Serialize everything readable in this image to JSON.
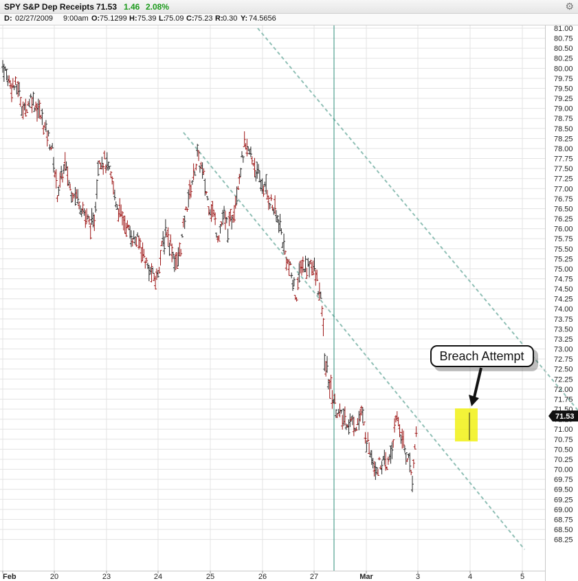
{
  "header": {
    "symbol": "SPY S&P Dep Receipts",
    "last": "71.53",
    "change": "1.46",
    "change_pct": "2.08%",
    "change_color": "#1a9a1a",
    "settings_icon": "gear-icon"
  },
  "quote_line": {
    "period": "D:",
    "date": "02/27/2009",
    "time": "9:00am",
    "open_label": "O:",
    "open": "75.1299",
    "high_label": "H:",
    "high": "75.39",
    "low_label": "L:",
    "low": "75.09",
    "close_label": "C:",
    "close": "75.23",
    "range_label": "R:",
    "range": "0.30",
    "yest_label": "Y:",
    "yest": "74.5656"
  },
  "chart_data": {
    "type": "bar",
    "description_source": "SPY hourly OHLC bars, Feb 2009 to Mar 4 2009",
    "ylim": [
      68.0,
      81.2
    ],
    "grid": true,
    "y_ticks": [
      "81.00",
      "80.75",
      "80.50",
      "80.25",
      "80.00",
      "79.75",
      "79.50",
      "79.25",
      "79.00",
      "78.75",
      "78.50",
      "78.25",
      "78.00",
      "77.75",
      "77.50",
      "77.25",
      "77.00",
      "76.75",
      "76.50",
      "76.25",
      "76.00",
      "75.75",
      "75.50",
      "75.25",
      "75.00",
      "74.75",
      "74.50",
      "74.25",
      "74.00",
      "73.75",
      "73.50",
      "73.25",
      "73.00",
      "72.75",
      "72.50",
      "72.25",
      "72.00",
      "71.75",
      "71.50",
      "71.25",
      "71.00",
      "70.75",
      "70.50",
      "70.25",
      "70.00",
      "69.75",
      "69.50",
      "69.25",
      "69.00",
      "68.75",
      "68.50",
      "68.25"
    ],
    "x_ticks": [
      {
        "label": "Feb",
        "pos": 0,
        "bold": true
      },
      {
        "label": "20",
        "pos": 2,
        "bold": false
      },
      {
        "label": "23",
        "pos": 3,
        "bold": false
      },
      {
        "label": "24",
        "pos": 4,
        "bold": false
      },
      {
        "label": "25",
        "pos": 5,
        "bold": false
      },
      {
        "label": "26",
        "pos": 6,
        "bold": false
      },
      {
        "label": "27",
        "pos": 7,
        "bold": false
      },
      {
        "label": "Mar",
        "pos": 8,
        "bold": true
      },
      {
        "label": "3",
        "pos": 9,
        "bold": false
      },
      {
        "label": "4",
        "pos": 10,
        "bold": false
      },
      {
        "label": "5",
        "pos": 11,
        "bold": false
      }
    ],
    "last_price_tag": "71.53",
    "crosshair_time": "02/27/2009 9:00am",
    "annotation": {
      "text": "Breach Attempt"
    },
    "trend_channel": {
      "upper": [
        {
          "t": 4.91,
          "v": 81.0
        },
        {
          "t": 12.03,
          "v": 70.0
        }
      ],
      "lower": [
        {
          "t": 3.48,
          "v": 78.4
        },
        {
          "t": 10.05,
          "v": 68.0
        }
      ]
    },
    "bar_path": [
      {
        "t": 0.0,
        "v": 80.1
      },
      {
        "t": 0.15,
        "v": 79.6
      },
      {
        "t": 0.3,
        "v": 79.5
      },
      {
        "t": 0.4,
        "v": 78.9
      },
      {
        "t": 0.55,
        "v": 79.3
      },
      {
        "t": 0.7,
        "v": 78.9
      },
      {
        "t": 0.85,
        "v": 78.4
      },
      {
        "t": 0.95,
        "v": 78.0
      },
      {
        "t": 1.05,
        "v": 76.9
      },
      {
        "t": 1.2,
        "v": 77.6
      },
      {
        "t": 1.3,
        "v": 77.0
      },
      {
        "t": 1.45,
        "v": 76.8
      },
      {
        "t": 1.6,
        "v": 76.3
      },
      {
        "t": 1.75,
        "v": 76.0
      },
      {
        "t": 1.85,
        "v": 77.8
      },
      {
        "t": 2.0,
        "v": 77.6
      },
      {
        "t": 2.1,
        "v": 77.2
      },
      {
        "t": 2.2,
        "v": 76.6
      },
      {
        "t": 2.35,
        "v": 76.1
      },
      {
        "t": 2.5,
        "v": 75.8
      },
      {
        "t": 2.65,
        "v": 75.6
      },
      {
        "t": 2.8,
        "v": 75.0
      },
      {
        "t": 2.95,
        "v": 74.7
      },
      {
        "t": 3.05,
        "v": 75.4
      },
      {
        "t": 3.15,
        "v": 76.0
      },
      {
        "t": 3.25,
        "v": 75.5
      },
      {
        "t": 3.35,
        "v": 75.1
      },
      {
        "t": 3.45,
        "v": 75.7
      },
      {
        "t": 3.55,
        "v": 76.6
      },
      {
        "t": 3.65,
        "v": 77.2
      },
      {
        "t": 3.75,
        "v": 77.8
      },
      {
        "t": 3.85,
        "v": 77.4
      },
      {
        "t": 3.95,
        "v": 76.7
      },
      {
        "t": 4.05,
        "v": 76.4
      },
      {
        "t": 4.15,
        "v": 75.8
      },
      {
        "t": 4.25,
        "v": 76.3
      },
      {
        "t": 4.35,
        "v": 76.0
      },
      {
        "t": 4.45,
        "v": 76.5
      },
      {
        "t": 4.55,
        "v": 77.3
      },
      {
        "t": 4.65,
        "v": 78.0
      },
      {
        "t": 4.75,
        "v": 77.9
      },
      {
        "t": 4.85,
        "v": 77.6
      },
      {
        "t": 4.95,
        "v": 77.2
      },
      {
        "t": 5.05,
        "v": 77.0
      },
      {
        "t": 5.15,
        "v": 76.7
      },
      {
        "t": 5.25,
        "v": 76.4
      },
      {
        "t": 5.35,
        "v": 76.0
      },
      {
        "t": 5.45,
        "v": 75.3
      },
      {
        "t": 5.55,
        "v": 74.9
      },
      {
        "t": 5.65,
        "v": 74.3
      },
      {
        "t": 5.75,
        "v": 75.1
      },
      {
        "t": 5.85,
        "v": 75.0
      },
      {
        "t": 5.95,
        "v": 75.2
      },
      {
        "t": 6.05,
        "v": 74.7
      },
      {
        "t": 6.15,
        "v": 74.0
      },
      {
        "t": 6.2,
        "v": 72.7
      },
      {
        "t": 6.3,
        "v": 72.1
      },
      {
        "t": 6.4,
        "v": 71.6
      },
      {
        "t": 6.5,
        "v": 71.3
      },
      {
        "t": 6.6,
        "v": 71.2
      },
      {
        "t": 6.7,
        "v": 71.2
      },
      {
        "t": 6.8,
        "v": 71.1
      },
      {
        "t": 6.9,
        "v": 71.4
      },
      {
        "t": 7.0,
        "v": 70.8
      },
      {
        "t": 7.1,
        "v": 70.4
      },
      {
        "t": 7.2,
        "v": 70.0
      },
      {
        "t": 7.3,
        "v": 70.2
      },
      {
        "t": 7.4,
        "v": 70.0
      },
      {
        "t": 7.5,
        "v": 70.6
      },
      {
        "t": 7.6,
        "v": 71.3
      },
      {
        "t": 7.7,
        "v": 70.7
      },
      {
        "t": 7.8,
        "v": 70.3
      },
      {
        "t": 7.9,
        "v": 69.8
      },
      {
        "t": 7.98,
        "v": 71.4
      }
    ]
  }
}
